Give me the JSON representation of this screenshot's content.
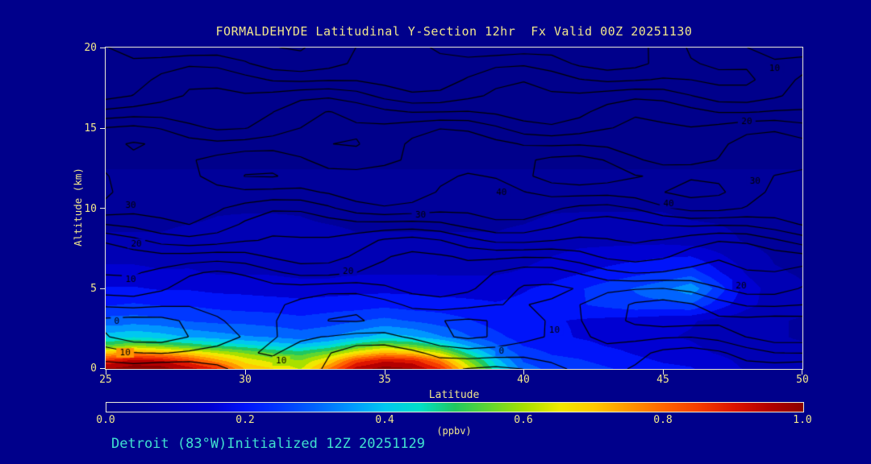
{
  "title": "FORMALDEHYDE Latitudinal Y-Section 12hr  Fx Valid 00Z 20251130",
  "footer": {
    "text": "Detroit (83°W)Initialized 12Z 20251129"
  },
  "axes": {
    "x": {
      "label": "Latitude",
      "ticks": [
        "25",
        "30",
        "35",
        "40",
        "45",
        "50"
      ]
    },
    "y": {
      "label": "Altitude (km)",
      "ticks": [
        "20",
        "15",
        "10",
        "5",
        "0"
      ]
    }
  },
  "colorbar": {
    "unit": "(ppbv)",
    "ticks": [
      "0.0",
      "0.2",
      "0.4",
      "0.6",
      "0.8",
      "1.0"
    ]
  },
  "colors": {
    "background": "#00008B",
    "title_text": "#F0E68C",
    "axis_text": "#F0E68C",
    "footer_text": "#40E0D0",
    "frame": "#EDECD8",
    "contour_line": "#000000"
  },
  "chart_data": {
    "type": "heatmap",
    "subtype": "filled-contour-cross-section",
    "title": "FORMALDEHYDE Latitudinal Y-Section 12hr  Fx Valid 00Z 20251130",
    "xlabel": "Latitude",
    "ylabel": "Altitude (km)",
    "xlim": [
      25,
      50
    ],
    "ylim": [
      0,
      20
    ],
    "grid": false,
    "colorbar_range": {
      "min": 0.0,
      "max": 1.0,
      "unit": "ppbv"
    },
    "colormap": [
      [
        0.0,
        "#00008B"
      ],
      [
        0.05,
        "#00009A"
      ],
      [
        0.1,
        "#0000B4"
      ],
      [
        0.15,
        "#0000D2"
      ],
      [
        0.2,
        "#0014FA"
      ],
      [
        0.25,
        "#0038FF"
      ],
      [
        0.3,
        "#0064FF"
      ],
      [
        0.35,
        "#0096FF"
      ],
      [
        0.4,
        "#00C8F0"
      ],
      [
        0.45,
        "#00E0C8"
      ],
      [
        0.5,
        "#20C860"
      ],
      [
        0.55,
        "#60D630"
      ],
      [
        0.6,
        "#A8E000"
      ],
      [
        0.65,
        "#F0E800"
      ],
      [
        0.7,
        "#FFC800"
      ],
      [
        0.75,
        "#FF9600"
      ],
      [
        0.8,
        "#FF6400"
      ],
      [
        0.85,
        "#F53C00"
      ],
      [
        0.9,
        "#DC1400"
      ],
      [
        0.95,
        "#B40000"
      ],
      [
        1.0,
        "#8B0000"
      ]
    ],
    "fill_field": {
      "units": "ppbv",
      "lats": [
        25,
        26,
        27,
        28,
        29,
        30,
        31,
        32,
        33,
        34,
        35,
        36,
        37,
        38,
        39,
        40,
        41,
        42,
        43,
        44,
        45,
        46,
        47,
        48,
        49,
        50
      ],
      "alts": [
        0,
        0.5,
        1,
        1.5,
        2,
        3,
        4,
        5,
        6,
        8,
        10,
        12,
        12.5,
        14,
        16,
        18,
        20
      ],
      "values": [
        [
          0.98,
          1.0,
          1.0,
          0.95,
          0.88,
          0.72,
          0.68,
          0.62,
          0.78,
          0.95,
          1.0,
          0.98,
          0.88,
          0.66,
          0.45,
          0.3,
          0.26,
          0.25,
          0.23,
          0.21,
          0.19,
          0.18,
          0.15,
          0.12,
          0.1,
          0.1
        ],
        [
          0.88,
          0.95,
          0.93,
          0.85,
          0.75,
          0.66,
          0.61,
          0.58,
          0.68,
          0.85,
          0.92,
          0.9,
          0.78,
          0.58,
          0.4,
          0.27,
          0.24,
          0.23,
          0.21,
          0.19,
          0.17,
          0.16,
          0.14,
          0.11,
          0.1,
          0.09
        ],
        [
          0.7,
          0.76,
          0.73,
          0.68,
          0.62,
          0.57,
          0.52,
          0.5,
          0.56,
          0.66,
          0.73,
          0.7,
          0.62,
          0.46,
          0.33,
          0.25,
          0.22,
          0.21,
          0.19,
          0.17,
          0.15,
          0.14,
          0.12,
          0.1,
          0.09,
          0.08
        ],
        [
          0.52,
          0.56,
          0.53,
          0.5,
          0.46,
          0.43,
          0.4,
          0.38,
          0.42,
          0.5,
          0.56,
          0.53,
          0.46,
          0.36,
          0.28,
          0.22,
          0.2,
          0.19,
          0.17,
          0.16,
          0.14,
          0.13,
          0.11,
          0.09,
          0.08,
          0.08
        ],
        [
          0.4,
          0.42,
          0.4,
          0.37,
          0.35,
          0.33,
          0.32,
          0.3,
          0.32,
          0.36,
          0.4,
          0.38,
          0.33,
          0.28,
          0.24,
          0.2,
          0.19,
          0.17,
          0.16,
          0.15,
          0.13,
          0.12,
          0.1,
          0.09,
          0.08,
          0.07
        ],
        [
          0.29,
          0.3,
          0.29,
          0.27,
          0.26,
          0.26,
          0.25,
          0.24,
          0.25,
          0.27,
          0.29,
          0.27,
          0.25,
          0.23,
          0.2,
          0.19,
          0.18,
          0.17,
          0.16,
          0.15,
          0.14,
          0.13,
          0.11,
          0.09,
          0.08,
          0.07
        ],
        [
          0.22,
          0.23,
          0.22,
          0.22,
          0.21,
          0.2,
          0.2,
          0.19,
          0.2,
          0.2,
          0.21,
          0.2,
          0.2,
          0.19,
          0.18,
          0.19,
          0.2,
          0.22,
          0.24,
          0.26,
          0.26,
          0.27,
          0.2,
          0.14,
          0.1,
          0.09
        ],
        [
          0.18,
          0.18,
          0.17,
          0.17,
          0.16,
          0.16,
          0.15,
          0.15,
          0.15,
          0.16,
          0.16,
          0.16,
          0.15,
          0.15,
          0.15,
          0.17,
          0.19,
          0.22,
          0.25,
          0.28,
          0.31,
          0.36,
          0.25,
          0.15,
          0.1,
          0.08
        ],
        [
          0.14,
          0.14,
          0.13,
          0.13,
          0.12,
          0.12,
          0.12,
          0.11,
          0.11,
          0.12,
          0.12,
          0.12,
          0.12,
          0.12,
          0.12,
          0.13,
          0.15,
          0.17,
          0.19,
          0.21,
          0.23,
          0.25,
          0.18,
          0.12,
          0.08,
          0.07
        ],
        [
          0.08,
          0.08,
          0.08,
          0.09,
          0.09,
          0.1,
          0.1,
          0.09,
          0.09,
          0.08,
          0.08,
          0.08,
          0.08,
          0.08,
          0.08,
          0.09,
          0.1,
          0.11,
          0.11,
          0.11,
          0.11,
          0.1,
          0.09,
          0.07,
          0.06,
          0.06
        ],
        [
          0.06,
          0.06,
          0.06,
          0.06,
          0.07,
          0.07,
          0.07,
          0.07,
          0.06,
          0.06,
          0.06,
          0.06,
          0.06,
          0.06,
          0.06,
          0.06,
          0.07,
          0.07,
          0.07,
          0.07,
          0.07,
          0.06,
          0.06,
          0.06,
          0.06,
          0.06
        ],
        [
          0.05,
          0.05,
          0.05,
          0.05,
          0.05,
          0.05,
          0.05,
          0.05,
          0.05,
          0.05,
          0.05,
          0.05,
          0.05,
          0.05,
          0.05,
          0.05,
          0.05,
          0.05,
          0.05,
          0.05,
          0.05,
          0.05,
          0.05,
          0.05,
          0.05,
          0.05
        ],
        [
          0.02,
          0.02,
          0.02,
          0.02,
          0.02,
          0.02,
          0.02,
          0.02,
          0.02,
          0.02,
          0.02,
          0.02,
          0.02,
          0.02,
          0.02,
          0.02,
          0.02,
          0.02,
          0.02,
          0.02,
          0.02,
          0.02,
          0.02,
          0.02,
          0.02,
          0.02
        ],
        [
          0.02,
          0.02,
          0.02,
          0.02,
          0.02,
          0.02,
          0.02,
          0.02,
          0.02,
          0.02,
          0.02,
          0.02,
          0.02,
          0.02,
          0.02,
          0.02,
          0.02,
          0.02,
          0.02,
          0.02,
          0.02,
          0.02,
          0.02,
          0.02,
          0.02,
          0.02
        ],
        [
          0.02,
          0.02,
          0.02,
          0.02,
          0.02,
          0.02,
          0.02,
          0.02,
          0.02,
          0.02,
          0.02,
          0.02,
          0.02,
          0.02,
          0.02,
          0.02,
          0.02,
          0.02,
          0.02,
          0.02,
          0.02,
          0.02,
          0.02,
          0.02,
          0.02,
          0.02
        ],
        [
          0.02,
          0.02,
          0.02,
          0.02,
          0.02,
          0.02,
          0.02,
          0.02,
          0.02,
          0.02,
          0.02,
          0.02,
          0.02,
          0.02,
          0.02,
          0.02,
          0.02,
          0.02,
          0.02,
          0.02,
          0.02,
          0.02,
          0.02,
          0.02,
          0.02,
          0.02
        ],
        [
          0.02,
          0.02,
          0.02,
          0.02,
          0.02,
          0.02,
          0.02,
          0.02,
          0.02,
          0.02,
          0.02,
          0.02,
          0.02,
          0.02,
          0.02,
          0.02,
          0.02,
          0.02,
          0.02,
          0.02,
          0.02,
          0.02,
          0.02,
          0.02,
          0.02,
          0.02
        ]
      ]
    },
    "contour_overlay": {
      "levels": [
        -5,
        0,
        5,
        10,
        15,
        20,
        25,
        30,
        35,
        40,
        45
      ],
      "base_profile": [
        12,
        8,
        3,
        1,
        4,
        8,
        13,
        18,
        24,
        30,
        36,
        40,
        42,
        40,
        37,
        33,
        28,
        23,
        18,
        14,
        11
      ],
      "tilt": {
        "start_alt": 8,
        "max_add": 6
      },
      "waves": [
        {
          "amp": 3.0,
          "k_lat": 0.55,
          "k_alt": 1.3,
          "phase": 0
        },
        {
          "amp": 2.0,
          "k_lat": 1.1,
          "k_alt": -0.7,
          "phase": 2
        },
        {
          "amp": 1.2,
          "k_lat": 0.25,
          "k_alt": 0.5,
          "phase": 4
        }
      ],
      "labels": [
        {
          "v": "10",
          "lat": 49.0,
          "alt": 18.7
        },
        {
          "v": "20",
          "lat": 48.0,
          "alt": 15.4
        },
        {
          "v": "30",
          "lat": 48.3,
          "alt": 11.7
        },
        {
          "v": "40",
          "lat": 45.2,
          "alt": 10.3
        },
        {
          "v": "40",
          "lat": 39.2,
          "alt": 11.0
        },
        {
          "v": "30",
          "lat": 36.3,
          "alt": 9.6
        },
        {
          "v": "20",
          "lat": 33.7,
          "alt": 6.1
        },
        {
          "v": "20",
          "lat": 47.8,
          "alt": 5.2
        },
        {
          "v": "10",
          "lat": 41.1,
          "alt": 2.4
        },
        {
          "v": "0",
          "lat": 39.2,
          "alt": 1.1
        },
        {
          "v": "30",
          "lat": 25.9,
          "alt": 10.2
        },
        {
          "v": "20",
          "lat": 26.1,
          "alt": 7.8
        },
        {
          "v": "10",
          "lat": 25.9,
          "alt": 5.6
        },
        {
          "v": "0",
          "lat": 25.4,
          "alt": 3.0
        },
        {
          "v": "10",
          "lat": 25.7,
          "alt": 1.0
        },
        {
          "v": "10",
          "lat": 31.3,
          "alt": 0.5
        }
      ]
    }
  }
}
